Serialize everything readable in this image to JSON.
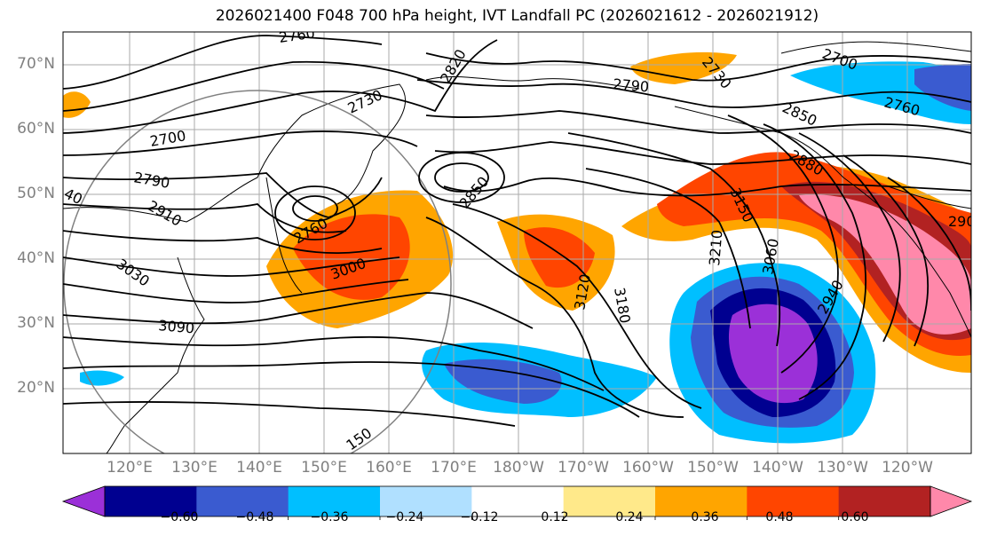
{
  "title": "2026021400 F048 700 hPa height, IVT Landfall PC (2026021612 - 2026021912)",
  "lat_labels": [
    "70°N",
    "60°N",
    "50°N",
    "40°N",
    "30°N",
    "20°N"
  ],
  "lon_labels": [
    "120°E",
    "130°E",
    "140°E",
    "150°E",
    "160°E",
    "170°E",
    "180°W",
    "170°W",
    "160°W",
    "150°W",
    "140°W",
    "130°W",
    "120°W"
  ],
  "contour_labels": [
    "2760",
    "2820",
    "2730",
    "2700",
    "2790",
    "2910",
    "2760",
    "3000",
    "3030",
    "3090",
    "2850",
    "3120",
    "3180",
    "3150",
    "3210",
    "3060",
    "2940",
    "2700",
    "2760",
    "2850",
    "2880",
    "2790",
    "2730",
    "150",
    "40",
    "290"
  ],
  "colorbar": {
    "ticks": [
      "−0.60",
      "−0.48",
      "−0.36",
      "−0.24",
      "−0.12",
      "0.12",
      "0.24",
      "0.36",
      "0.48",
      "0.60"
    ],
    "colors": [
      "#9b30d8",
      "#000090",
      "#3a5bd0",
      "#00bfff",
      "#b0e0ff",
      "#ffffff",
      "#ffe98a",
      "#ffa500",
      "#ff4500",
      "#b22222",
      "#ff88aa"
    ]
  }
}
